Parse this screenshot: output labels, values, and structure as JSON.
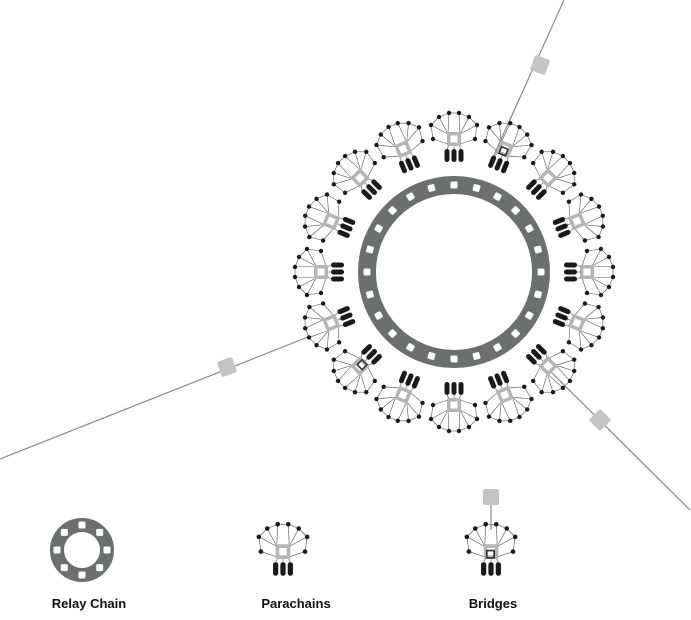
{
  "colors": {
    "relay_ring": "#6d6e70",
    "slot": "#ffffff",
    "collator_square": "#b5b5b5",
    "bridge_node": "#c4c4c4",
    "dot": "#1a1a1a",
    "edge": "#555555",
    "link": "#8a8a8a"
  },
  "legend": {
    "relay_chain_label": "Relay Chain",
    "parachains_label": "Parachains",
    "bridges_label": "Bridges"
  }
}
